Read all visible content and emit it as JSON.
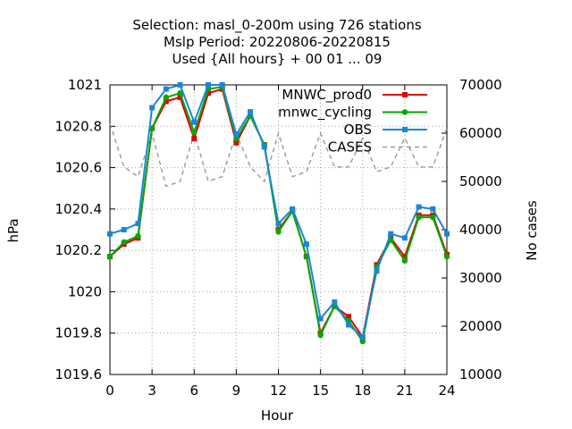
{
  "chart_data": {
    "type": "line",
    "title_lines": [
      "Selection: masl_0-200m using   726 stations",
      "Mslp   Period: 20220806-20220815",
      "Used {All hours} + 00 01 ... 09"
    ],
    "xlabel": "Hour",
    "ylabel": "hPa",
    "y2label": "No cases",
    "xlim": [
      0,
      24
    ],
    "ylim": [
      1019.6,
      1021
    ],
    "y2lim": [
      10000,
      70000
    ],
    "xticks": [
      "0",
      "3",
      "6",
      "9",
      "12",
      "15",
      "18",
      "21",
      "24"
    ],
    "yticks": [
      "1019.6",
      "1019.8",
      "1020",
      "1020.2",
      "1020.4",
      "1020.6",
      "1020.8",
      "1021"
    ],
    "y2ticks": [
      "10000",
      "20000",
      "30000",
      "40000",
      "50000",
      "60000",
      "70000"
    ],
    "grid": true,
    "legend_position": "top-right",
    "x": [
      0,
      1,
      2,
      3,
      4,
      5,
      6,
      7,
      8,
      9,
      10,
      11,
      12,
      13,
      14,
      15,
      16,
      17,
      18,
      19,
      20,
      21,
      22,
      23,
      24
    ],
    "series": [
      {
        "name": "MNWC_prod0",
        "color": "#e00000",
        "marker": "square",
        "axis": "left",
        "values": [
          1020.17,
          1020.23,
          1020.26,
          1020.79,
          1020.92,
          1020.94,
          1020.74,
          1020.96,
          1020.98,
          1020.72,
          1020.85,
          1020.71,
          1020.3,
          1020.39,
          1020.17,
          1019.8,
          1019.93,
          1019.88,
          1019.78,
          1020.13,
          1020.26,
          1020.17,
          1020.37,
          1020.37,
          1020.18
        ]
      },
      {
        "name": "mnwc_cycling",
        "color": "#00aa00",
        "marker": "circle",
        "axis": "left",
        "values": [
          1020.17,
          1020.24,
          1020.27,
          1020.79,
          1020.94,
          1020.96,
          1020.77,
          1020.98,
          1020.99,
          1020.74,
          1020.85,
          1020.71,
          1020.29,
          1020.39,
          1020.17,
          1019.79,
          1019.93,
          1019.86,
          1019.76,
          1020.12,
          1020.25,
          1020.15,
          1020.36,
          1020.36,
          1020.17
        ]
      },
      {
        "name": "OBS",
        "color": "#1a86d8",
        "marker": "square",
        "axis": "left",
        "values": [
          1020.28,
          1020.3,
          1020.33,
          1020.89,
          1020.98,
          1021.0,
          1020.82,
          1021.0,
          1021.0,
          1020.76,
          1020.87,
          1020.7,
          1020.33,
          1020.4,
          1020.23,
          1019.87,
          1019.95,
          1019.84,
          1019.78,
          1020.1,
          1020.28,
          1020.26,
          1020.41,
          1020.4,
          1020.28
        ]
      },
      {
        "name": "CASES",
        "color": "#999999",
        "marker": "none",
        "dashed": true,
        "axis": "right",
        "values": [
          62000,
          53000,
          51000,
          60000,
          49000,
          50000,
          60000,
          50000,
          51000,
          60000,
          53000,
          50000,
          60000,
          51000,
          52000,
          60000,
          53000,
          53000,
          59000,
          52000,
          53000,
          59000,
          53000,
          53000,
          61000
        ]
      }
    ]
  }
}
